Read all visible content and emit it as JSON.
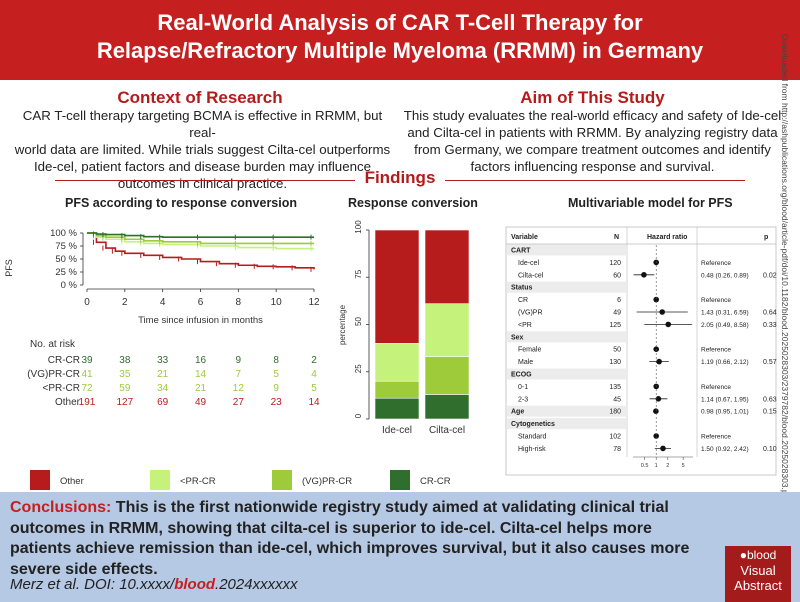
{
  "header": {
    "title_line1": "Real-World Analysis of CAR T-Cell Therapy for",
    "title_line2": "Relapse/Refractory Multiple Myeloma (RRMM) in Germany"
  },
  "context": {
    "title": "Context of Research",
    "lines": [
      "CAR T-cell therapy targeting BCMA is effective in RRMM, but real-",
      "world data are limited. While trials suggest Cilta-cel outperforms",
      "Ide-cel, patient factors and disease burden may influence",
      "outcomes in clinical practice."
    ]
  },
  "aim": {
    "title": "Aim of This Study",
    "lines": [
      "This study evaluates the real-world efficacy and safety of Ide-cel",
      "and Cilta-cel in patients with RRMM. By analyzing registry data",
      "from Germany, we compare treatment outcomes and identify",
      "factors influencing response and survival."
    ]
  },
  "findings": {
    "title": "Findings"
  },
  "side_note": "Downloaded from http://ashpublications.org/blood/article-pdf/doi/10.1182/blood.2025028303/2379782/blood.2025028303.pdf by guest on 13 June 2025",
  "colors": {
    "other": "#b71c1c",
    "lt_pr_cr": "#c5f27a",
    "vgpr_cr": "#9dcb3a",
    "cr_cr": "#2f6e2d",
    "accent": "#c51f1f",
    "panel_bg": "#b5c8e4"
  },
  "km": {
    "title": "PFS according to response conversion",
    "y_label": "PFS",
    "y_ticks": [
      "100 %",
      "75 %",
      "50 %",
      "25 %",
      "0 %"
    ],
    "x_ticks": [
      "0",
      "2",
      "4",
      "6",
      "8",
      "10",
      "12"
    ],
    "x_label": "Time since infusion in months",
    "risk_title": "No. at risk",
    "risk_rows": [
      {
        "label": "CR-CR",
        "values": [
          "39",
          "38",
          "33",
          "16",
          "9",
          "8",
          "2"
        ]
      },
      {
        "label": "(VG)PR-CR",
        "values": [
          "41",
          "35",
          "21",
          "14",
          "7",
          "5",
          "4"
        ]
      },
      {
        "label": "<PR-CR",
        "values": [
          "72",
          "59",
          "34",
          "21",
          "12",
          "9",
          "5"
        ]
      },
      {
        "label": "Other",
        "values": [
          "191",
          "127",
          "69",
          "49",
          "27",
          "23",
          "14"
        ]
      }
    ],
    "legend": [
      "Other",
      "<PR-CR",
      "(VG)PR-CR",
      "CR-CR"
    ]
  },
  "chart_data": [
    {
      "type": "line",
      "title": "PFS according to response conversion",
      "xlabel": "Time since infusion in months",
      "ylabel": "PFS",
      "xlim": [
        0,
        12
      ],
      "ylim": [
        0,
        100
      ],
      "series": [
        {
          "name": "CR-CR",
          "x": [
            0,
            0.5,
            1,
            2,
            3,
            4,
            6,
            8,
            10,
            12
          ],
          "y": [
            100,
            98,
            97,
            95,
            93,
            92,
            92,
            92,
            92,
            92
          ]
        },
        {
          "name": "(VG)PR-CR",
          "x": [
            0,
            0.5,
            1,
            2,
            3,
            4,
            6,
            8,
            10,
            12
          ],
          "y": [
            100,
            95,
            92,
            88,
            85,
            83,
            80,
            80,
            80,
            80
          ]
        },
        {
          "name": "<PR-CR",
          "x": [
            0,
            0.5,
            1,
            2,
            3,
            4,
            6,
            8,
            10,
            12
          ],
          "y": [
            100,
            92,
            88,
            83,
            80,
            78,
            75,
            72,
            70,
            70
          ]
        },
        {
          "name": "Other",
          "x": [
            0,
            0.5,
            1,
            1.5,
            2,
            3,
            4,
            5,
            6,
            7,
            8,
            9,
            10,
            11,
            12
          ],
          "y": [
            100,
            82,
            71,
            65,
            61,
            57,
            53,
            50,
            45,
            41,
            38,
            36,
            35,
            33,
            30
          ]
        }
      ]
    },
    {
      "type": "bar",
      "title": "Response conversion",
      "ylabel": "percentage",
      "categories": [
        "Ide-cel",
        "Cilta-cel"
      ],
      "ylim": [
        0,
        100
      ],
      "stacked": true,
      "series": [
        {
          "name": "CR-CR",
          "values": [
            11,
            13
          ]
        },
        {
          "name": "(VG)PR-CR",
          "values": [
            9,
            20
          ]
        },
        {
          "name": "<PR-CR",
          "values": [
            20,
            28
          ]
        },
        {
          "name": "Other",
          "values": [
            60,
            39
          ]
        }
      ]
    },
    {
      "type": "forest",
      "title": "Multivariable model for PFS",
      "xlabel": "",
      "x_ticks": [
        "0.5",
        "1",
        "2",
        "5"
      ],
      "reference": 1
    }
  ],
  "stacked_bar": {
    "title": "Response conversion",
    "y_label": "percentage",
    "y_ticks": [
      "100",
      "75",
      "50",
      "25",
      "0"
    ],
    "categories": [
      "Ide-cel",
      "Cilta-cel"
    ]
  },
  "forest": {
    "title": "Multivariable model for PFS",
    "headers": {
      "variable": "Variable",
      "n": "N",
      "hr": "Hazard ratio",
      "p": "p"
    },
    "x_ticks": [
      "0.5",
      "1",
      "2",
      "5"
    ],
    "rows": [
      {
        "kind": "group",
        "label": "CART"
      },
      {
        "kind": "item",
        "label": "Ide-cel",
        "n": "120",
        "est": "Reference",
        "p": "",
        "hr": 1,
        "lo": null,
        "hi": null
      },
      {
        "kind": "item",
        "label": "Cilta-cel",
        "n": "60",
        "est": "0.48 (0.26, 0.89)",
        "p": "0.02",
        "hr": 0.48,
        "lo": 0.26,
        "hi": 0.89
      },
      {
        "kind": "group",
        "label": "Status"
      },
      {
        "kind": "item",
        "label": "CR",
        "n": "6",
        "est": "Reference",
        "p": "",
        "hr": 1,
        "lo": null,
        "hi": null
      },
      {
        "kind": "item",
        "label": "(VG)PR",
        "n": "49",
        "est": "1.43 (0.31, 6.59)",
        "p": "0.64",
        "hr": 1.43,
        "lo": 0.31,
        "hi": 6.59
      },
      {
        "kind": "item",
        "label": "<PR",
        "n": "125",
        "est": "2.05 (0.49, 8.58)",
        "p": "0.33",
        "hr": 2.05,
        "lo": 0.49,
        "hi": 8.58
      },
      {
        "kind": "group",
        "label": "Sex"
      },
      {
        "kind": "item",
        "label": "Female",
        "n": "50",
        "est": "Reference",
        "p": "",
        "hr": 1,
        "lo": null,
        "hi": null
      },
      {
        "kind": "item",
        "label": "Male",
        "n": "130",
        "est": "1.19 (0.66, 2.12)",
        "p": "0.57",
        "hr": 1.19,
        "lo": 0.66,
        "hi": 2.12
      },
      {
        "kind": "group",
        "label": "ECOG"
      },
      {
        "kind": "item",
        "label": "0-1",
        "n": "135",
        "est": "Reference",
        "p": "",
        "hr": 1,
        "lo": null,
        "hi": null
      },
      {
        "kind": "item",
        "label": "2-3",
        "n": "45",
        "est": "1.14 (0.67, 1.95)",
        "p": "0.63",
        "hr": 1.14,
        "lo": 0.67,
        "hi": 1.95
      },
      {
        "kind": "groupitem",
        "label": "Age",
        "n": "180",
        "est": "0.98 (0.95, 1.01)",
        "p": "0.15",
        "hr": 0.98,
        "lo": 0.95,
        "hi": 1.01
      },
      {
        "kind": "group",
        "label": "Cytogenetics"
      },
      {
        "kind": "item",
        "label": "Standard",
        "n": "102",
        "est": "Reference",
        "p": "",
        "hr": 1,
        "lo": null,
        "hi": null
      },
      {
        "kind": "item",
        "label": "High-risk",
        "n": "78",
        "est": "1.50 (0.92, 2.42)",
        "p": "0.10",
        "hr": 1.5,
        "lo": 0.92,
        "hi": 2.42
      }
    ]
  },
  "conclusion": {
    "lead": "Conclusions:",
    "text": " This is the first nationwide registry study aimed at validating clinical trial outcomes in RRMM, showing that cilta-cel is superior to ide-cel. Cilta-cel helps more patients achieve remission than ide-cel, which improves survival, but it also causes more severe side effects."
  },
  "citation": {
    "prefix": "Merz et al. DOI: 10.xxxx/",
    "journal": "blood",
    "suffix": ".2024xxxxxx"
  },
  "badge": {
    "brand": "blood",
    "line1": "Visual",
    "line2": "Abstract"
  }
}
